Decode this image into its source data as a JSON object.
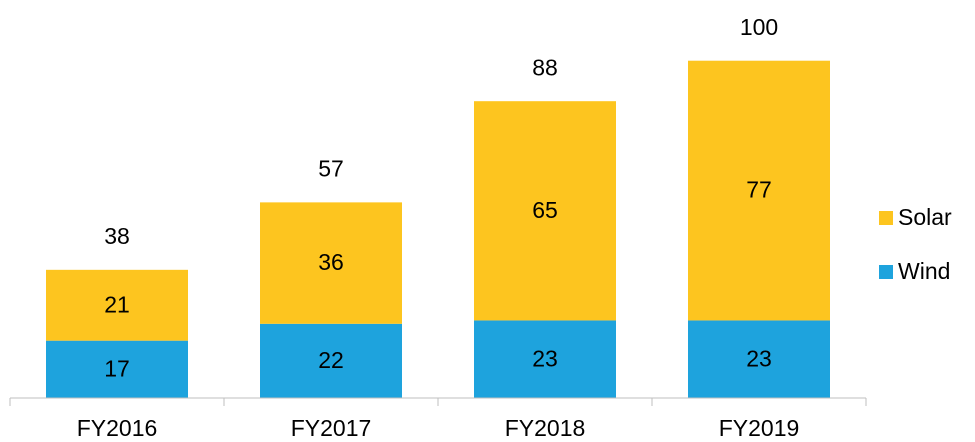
{
  "chart_data": {
    "type": "stacked_bar",
    "categories": [
      "FY2016",
      "FY2017",
      "FY2018",
      "FY2019"
    ],
    "series": [
      {
        "name": "Wind",
        "color": "#1ea3dd",
        "values": [
          17,
          22,
          23,
          23
        ]
      },
      {
        "name": "Solar",
        "color": "#fdc51f",
        "values": [
          21,
          36,
          65,
          77
        ]
      }
    ],
    "totals": [
      38,
      57,
      88,
      100
    ],
    "ylim": [
      0,
      118
    ],
    "legend": "right"
  }
}
